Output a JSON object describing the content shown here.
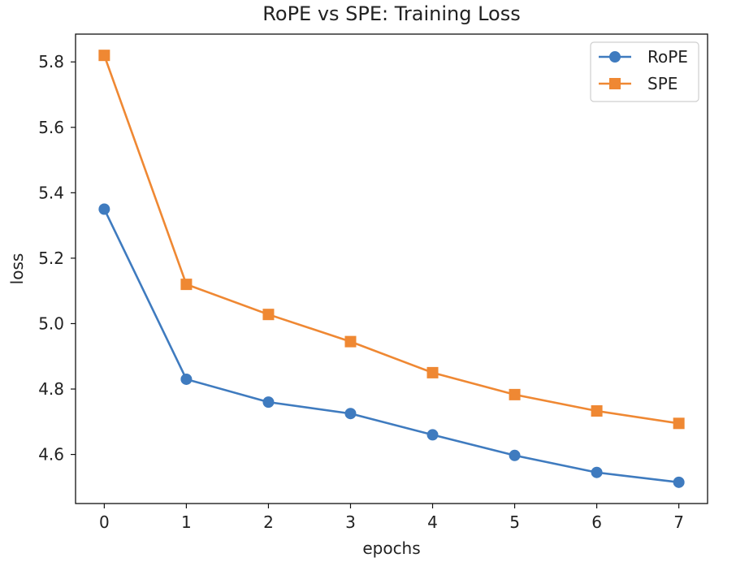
{
  "chart_data": {
    "type": "line",
    "title": "RoPE vs SPE: Training Loss",
    "xlabel": "epochs",
    "ylabel": "loss",
    "x": [
      0,
      1,
      2,
      3,
      4,
      5,
      6,
      7
    ],
    "xticks": [
      "0",
      "1",
      "2",
      "3",
      "4",
      "5",
      "6",
      "7"
    ],
    "yticks": [
      "4.6",
      "4.8",
      "5.0",
      "5.2",
      "5.4",
      "5.6",
      "5.8"
    ],
    "ytick_values": [
      4.6,
      4.8,
      5.0,
      5.2,
      5.4,
      5.6,
      5.8
    ],
    "xlim": [
      -0.35,
      7.35
    ],
    "ylim": [
      4.45,
      5.885
    ],
    "grid": false,
    "legend_position": "top-right",
    "series": [
      {
        "name": "RoPE",
        "color": "#3f7bbf",
        "marker": "circle",
        "values": [
          5.35,
          4.83,
          4.76,
          4.725,
          4.66,
          4.597,
          4.545,
          4.515
        ]
      },
      {
        "name": "SPE",
        "color": "#ef8833",
        "marker": "square",
        "values": [
          5.82,
          5.12,
          5.028,
          4.945,
          4.85,
          4.783,
          4.733,
          4.695
        ]
      }
    ]
  }
}
